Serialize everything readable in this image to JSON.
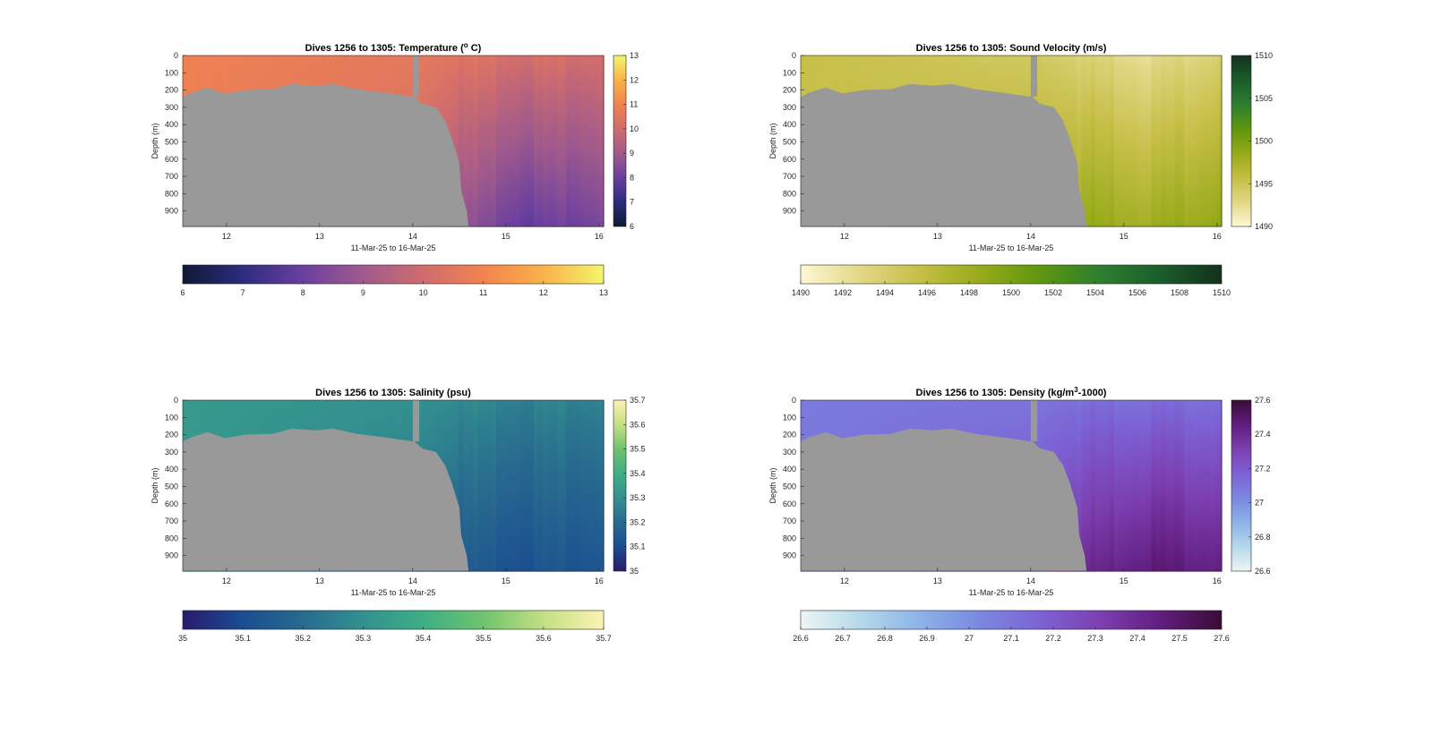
{
  "chart_data": [
    {
      "type": "heatmap",
      "title": "Dives 1256 to 1305: Temperature (",
      "title_sup": "o",
      "title_suffix": " C)",
      "xlabel": "11-Mar-25 to 16-Mar-25",
      "ylabel": "Depth (m)",
      "x_ticks": [
        "12",
        "13",
        "14",
        "15",
        "16"
      ],
      "y_ticks": [
        "0",
        "100",
        "200",
        "300",
        "400",
        "500",
        "600",
        "700",
        "800",
        "900"
      ],
      "xlim": [
        11.53,
        16.05
      ],
      "ylim": [
        0,
        990
      ],
      "colorbar_right_ticks": [
        "13",
        "12",
        "11",
        "10",
        "9",
        "8",
        "7",
        "6"
      ],
      "colorbar_bottom_ticks": [
        "6",
        "7",
        "8",
        "9",
        "10",
        "11",
        "12",
        "13"
      ],
      "clim": [
        6,
        13
      ],
      "colormap": [
        "#0d1a33",
        "#2d2c7e",
        "#6a3fa0",
        "#a05a8c",
        "#cf6c6e",
        "#f2834f",
        "#f9b24a",
        "#f3f56d"
      ],
      "surface_value": 10.9,
      "deep_values": [
        {
          "x": 11.5,
          "v_top": 10.9,
          "v_bottom": 10.9
        },
        {
          "x": 14.05,
          "v_top": 10.6,
          "v_bottom": 10.0
        },
        {
          "x": 14.6,
          "v_top": 10.4,
          "v_bottom": 8.6
        },
        {
          "x": 15.3,
          "v_top": 10.2,
          "v_bottom": 7.9
        },
        {
          "x": 16.05,
          "v_top": 10.2,
          "v_bottom": 8.4
        }
      ]
    },
    {
      "type": "heatmap",
      "title": "Dives 1256 to 1305: Sound Velocity (m/s)",
      "xlabel": "11-Mar-25 to 16-Mar-25",
      "ylabel": "Depth (m)",
      "x_ticks": [
        "12",
        "13",
        "14",
        "15",
        "16"
      ],
      "y_ticks": [
        "0",
        "100",
        "200",
        "300",
        "400",
        "500",
        "600",
        "700",
        "800",
        "900"
      ],
      "xlim": [
        11.53,
        16.05
      ],
      "ylim": [
        0,
        990
      ],
      "colorbar_right_ticks": [
        "1510",
        "1505",
        "1500",
        "1495",
        "1490"
      ],
      "colorbar_bottom_ticks": [
        "1490",
        "1492",
        "1494",
        "1496",
        "1498",
        "1500",
        "1502",
        "1504",
        "1506",
        "1508",
        "1510"
      ],
      "clim": [
        1490,
        1510
      ],
      "colormap": [
        "#fdf8d4",
        "#e2d786",
        "#c4be45",
        "#96aa18",
        "#5d960f",
        "#2e7e2f",
        "#1a5c2c",
        "#15301c"
      ],
      "surface_value": 1495.5,
      "deep_values": [
        {
          "x": 11.5,
          "v_top": 1495.5,
          "v_bottom": 1495.5
        },
        {
          "x": 14.05,
          "v_top": 1494.5,
          "v_bottom": 1497.5
        },
        {
          "x": 14.6,
          "v_top": 1493.5,
          "v_bottom": 1498.5
        },
        {
          "x": 15.3,
          "v_top": 1492.5,
          "v_bottom": 1498.0
        },
        {
          "x": 16.05,
          "v_top": 1494.0,
          "v_bottom": 1499.0
        }
      ]
    },
    {
      "type": "heatmap",
      "title": "Dives 1256 to 1305: Salinity (psu)",
      "xlabel": "11-Mar-25 to 16-Mar-25",
      "ylabel": "Depth (m)",
      "x_ticks": [
        "12",
        "13",
        "14",
        "15",
        "16"
      ],
      "y_ticks": [
        "0",
        "100",
        "200",
        "300",
        "400",
        "500",
        "600",
        "700",
        "800",
        "900"
      ],
      "xlim": [
        11.53,
        16.05
      ],
      "ylim": [
        0,
        990
      ],
      "colorbar_right_ticks": [
        "35.7",
        "35.6",
        "35.5",
        "35.4",
        "35.3",
        "35.2",
        "35.1",
        "35"
      ],
      "colorbar_bottom_ticks": [
        "35",
        "35.1",
        "35.2",
        "35.3",
        "35.4",
        "35.5",
        "35.6",
        "35.7"
      ],
      "clim": [
        35,
        35.7
      ],
      "colormap": [
        "#2a1a6c",
        "#1a4d91",
        "#286b8f",
        "#33918f",
        "#3eae84",
        "#70c36e",
        "#c4df83",
        "#fdf3b4"
      ],
      "surface_value": 35.33,
      "deep_values": [
        {
          "x": 11.5,
          "v_top": 35.33,
          "v_bottom": 35.33
        },
        {
          "x": 14.05,
          "v_top": 35.3,
          "v_bottom": 35.22
        },
        {
          "x": 14.6,
          "v_top": 35.28,
          "v_bottom": 35.14
        },
        {
          "x": 15.3,
          "v_top": 35.26,
          "v_bottom": 35.12
        },
        {
          "x": 16.05,
          "v_top": 35.27,
          "v_bottom": 35.14
        }
      ]
    },
    {
      "type": "heatmap",
      "title": "Dives 1256 to 1305: Density (kg/m",
      "title_sup": "3",
      "title_suffix": "-1000)",
      "xlabel": "11-Mar-25 to 16-Mar-25",
      "ylabel": "Depth (m)",
      "x_ticks": [
        "12",
        "13",
        "14",
        "15",
        "16"
      ],
      "y_ticks": [
        "0",
        "100",
        "200",
        "300",
        "400",
        "500",
        "600",
        "700",
        "800",
        "900"
      ],
      "xlim": [
        11.53,
        16.05
      ],
      "ylim": [
        0,
        990
      ],
      "colorbar_right_ticks": [
        "27.6",
        "27.4",
        "27.2",
        "27",
        "26.8",
        "26.6"
      ],
      "colorbar_bottom_ticks": [
        "26.6",
        "26.7",
        "26.8",
        "26.9",
        "27",
        "27.1",
        "27.2",
        "27.3",
        "27.4",
        "27.5",
        "27.6"
      ],
      "clim": [
        26.6,
        27.6
      ],
      "colormap": [
        "#edf6f5",
        "#b4d8ea",
        "#8cb2e8",
        "#7b87e0",
        "#7c62d4",
        "#7c3fb0",
        "#611d7e",
        "#3a0c36"
      ],
      "surface_value": 27.08,
      "deep_values": [
        {
          "x": 11.5,
          "v_top": 27.08,
          "v_bottom": 27.08
        },
        {
          "x": 14.05,
          "v_top": 27.1,
          "v_bottom": 27.25
        },
        {
          "x": 14.6,
          "v_top": 27.12,
          "v_bottom": 27.4
        },
        {
          "x": 15.3,
          "v_top": 27.13,
          "v_bottom": 27.48
        },
        {
          "x": 16.05,
          "v_top": 27.13,
          "v_bottom": 27.45
        }
      ]
    }
  ],
  "seafloor": {
    "color": "#999999",
    "profile": [
      {
        "x": 11.53,
        "depth": 240
      },
      {
        "x": 11.62,
        "depth": 215
      },
      {
        "x": 11.8,
        "depth": 185
      },
      {
        "x": 11.98,
        "depth": 220
      },
      {
        "x": 12.2,
        "depth": 200
      },
      {
        "x": 12.5,
        "depth": 195
      },
      {
        "x": 12.7,
        "depth": 165
      },
      {
        "x": 12.95,
        "depth": 175
      },
      {
        "x": 13.15,
        "depth": 165
      },
      {
        "x": 13.4,
        "depth": 195
      },
      {
        "x": 13.7,
        "depth": 215
      },
      {
        "x": 13.95,
        "depth": 235
      },
      {
        "x": 14.02,
        "depth": 240
      },
      {
        "x": 14.1,
        "depth": 280
      },
      {
        "x": 14.25,
        "depth": 300
      },
      {
        "x": 14.35,
        "depth": 380
      },
      {
        "x": 14.42,
        "depth": 480
      },
      {
        "x": 14.5,
        "depth": 620
      },
      {
        "x": 14.52,
        "depth": 780
      },
      {
        "x": 14.58,
        "depth": 900
      },
      {
        "x": 14.6,
        "depth": 990
      }
    ],
    "gap_column": {
      "x_start": 14.0,
      "x_end": 14.07
    }
  }
}
